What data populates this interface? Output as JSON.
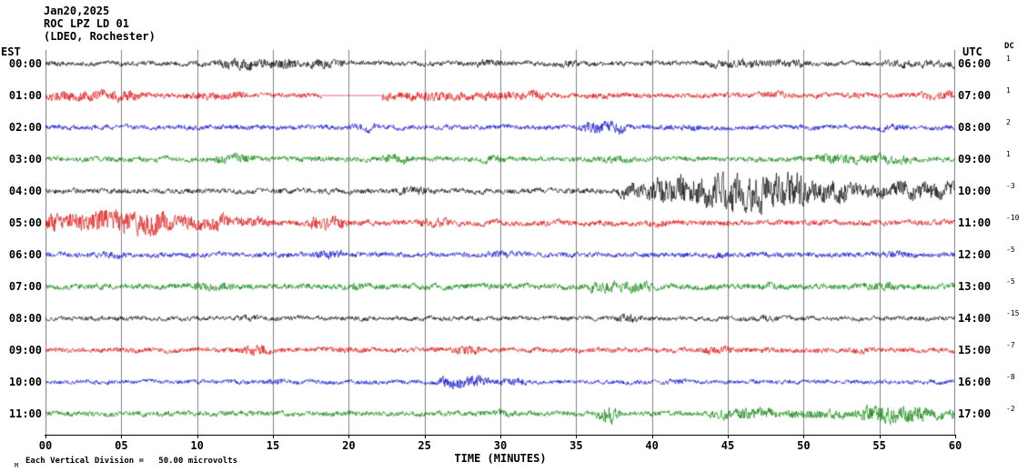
{
  "header": {
    "date": "Jan20,2025",
    "station": "ROC LPZ LD 01",
    "network": "(LDEO, Rochester)"
  },
  "axes": {
    "left_label": "EST",
    "right_label": "UTC",
    "dc_label": "DC",
    "x_label": "TIME (MINUTES)",
    "x_ticks": [
      "00",
      "05",
      "10",
      "15",
      "20",
      "25",
      "30",
      "35",
      "40",
      "45",
      "50",
      "55",
      "60"
    ]
  },
  "footer": {
    "scale_note": "Each Vertical Division =   50.00 microvolts",
    "corner_mark": "M"
  },
  "chart_data": {
    "type": "line",
    "title": "ROC LPZ LD 01 (LDEO, Rochester) helicorder, Jan20,2025",
    "xlabel": "TIME (MINUTES)",
    "x_range_minutes": [
      0,
      60
    ],
    "grid_interval_minutes": 5,
    "vertical_division_microvolts": 50.0,
    "grid": true,
    "colors": {
      "black": "#000000",
      "red": "#dd0000",
      "blue": "#0000cc",
      "green": "#008000",
      "grid": "#808080"
    },
    "rows": [
      {
        "est": "00:00",
        "utc": "06:00",
        "color": "black",
        "dc": "1",
        "base": 3.2,
        "events": [
          {
            "t0": 11.5,
            "t1": 16.5,
            "amp": 7
          },
          {
            "t0": 17.5,
            "t1": 19.5,
            "amp": 6
          },
          {
            "t0": 28.5,
            "t1": 30,
            "amp": 5
          },
          {
            "t0": 34,
            "t1": 35,
            "amp": 5
          },
          {
            "t0": 44,
            "t1": 50,
            "amp": 5.5
          },
          {
            "t0": 55.5,
            "t1": 60,
            "amp": 5
          }
        ],
        "gaps": []
      },
      {
        "est": "01:00",
        "utc": "07:00",
        "color": "red",
        "dc": "1",
        "base": 3.4,
        "events": [
          {
            "t0": 0,
            "t1": 6,
            "amp": 7
          },
          {
            "t0": 9.5,
            "t1": 13,
            "amp": 5.5
          },
          {
            "t0": 22,
            "t1": 33,
            "amp": 6
          },
          {
            "t0": 36,
            "t1": 37,
            "amp": 4.5
          },
          {
            "t0": 47.5,
            "t1": 49,
            "amp": 5
          },
          {
            "t0": 53,
            "t1": 54,
            "amp": 4.5
          },
          {
            "t0": 58,
            "t1": 60,
            "amp": 6
          }
        ],
        "gaps": [
          {
            "t0": 18.2,
            "t1": 22.2
          }
        ]
      },
      {
        "est": "02:00",
        "utc": "08:00",
        "color": "blue",
        "dc": "2",
        "base": 3.2,
        "events": [
          {
            "t0": 20.5,
            "t1": 22,
            "amp": 5
          },
          {
            "t0": 35.5,
            "t1": 38,
            "amp": 8
          },
          {
            "t0": 41.5,
            "t1": 43,
            "amp": 4.5
          },
          {
            "t0": 55,
            "t1": 56.5,
            "amp": 4.5
          }
        ],
        "gaps": []
      },
      {
        "est": "03:00",
        "utc": "09:00",
        "color": "green",
        "dc": "1",
        "base": 3.4,
        "events": [
          {
            "t0": 11.5,
            "t1": 13.5,
            "amp": 7
          },
          {
            "t0": 22.5,
            "t1": 24,
            "amp": 7
          },
          {
            "t0": 29,
            "t1": 30,
            "amp": 5
          },
          {
            "t0": 37,
            "t1": 38.5,
            "amp": 5
          },
          {
            "t0": 51,
            "t1": 57,
            "amp": 6.5
          }
        ],
        "gaps": []
      },
      {
        "est": "04:00",
        "utc": "10:00",
        "color": "black",
        "dc": "-3",
        "base": 3.4,
        "events": [
          {
            "t0": 23.5,
            "t1": 25,
            "amp": 6
          },
          {
            "t0": 38,
            "t1": 40,
            "amp": 10
          },
          {
            "t0": 40,
            "t1": 44,
            "amp": 20
          },
          {
            "t0": 44,
            "t1": 50,
            "amp": 24
          },
          {
            "t0": 50,
            "t1": 53,
            "amp": 15
          },
          {
            "t0": 53,
            "t1": 56,
            "amp": 9
          },
          {
            "t0": 56,
            "t1": 60,
            "amp": 11
          }
        ],
        "gaps": []
      },
      {
        "est": "05:00",
        "utc": "11:00",
        "color": "red",
        "dc": "-10",
        "base": 3.8,
        "events": [
          {
            "t0": 0,
            "t1": 3,
            "amp": 13
          },
          {
            "t0": 3,
            "t1": 8,
            "amp": 15
          },
          {
            "t0": 8,
            "t1": 12,
            "amp": 10
          },
          {
            "t0": 12,
            "t1": 14.5,
            "amp": 7
          },
          {
            "t0": 17.5,
            "t1": 19.5,
            "amp": 10
          },
          {
            "t0": 25,
            "t1": 26.5,
            "amp": 6
          },
          {
            "t0": 40,
            "t1": 41,
            "amp": 5
          }
        ],
        "gaps": []
      },
      {
        "est": "06:00",
        "utc": "12:00",
        "color": "blue",
        "dc": "-5",
        "base": 3.4,
        "events": [
          {
            "t0": 4,
            "t1": 5,
            "amp": 5
          },
          {
            "t0": 18,
            "t1": 19.5,
            "amp": 6
          },
          {
            "t0": 29.5,
            "t1": 31,
            "amp": 5
          },
          {
            "t0": 44,
            "t1": 45,
            "amp": 4.5
          },
          {
            "t0": 55,
            "t1": 57,
            "amp": 5
          }
        ],
        "gaps": []
      },
      {
        "est": "07:00",
        "utc": "13:00",
        "color": "green",
        "dc": "-5",
        "base": 3.8,
        "events": [
          {
            "t0": 10,
            "t1": 12,
            "amp": 6
          },
          {
            "t0": 20,
            "t1": 21,
            "amp": 5
          },
          {
            "t0": 36,
            "t1": 40,
            "amp": 7
          },
          {
            "t0": 47,
            "t1": 48,
            "amp": 5
          },
          {
            "t0": 54.5,
            "t1": 56,
            "amp": 5.5
          }
        ],
        "gaps": []
      },
      {
        "est": "08:00",
        "utc": "14:00",
        "color": "black",
        "dc": "-15",
        "base": 3.0,
        "events": [
          {
            "t0": 13,
            "t1": 14,
            "amp": 4.5
          },
          {
            "t0": 38,
            "t1": 39,
            "amp": 6
          },
          {
            "t0": 47,
            "t1": 48,
            "amp": 4.5
          }
        ],
        "gaps": []
      },
      {
        "est": "09:00",
        "utc": "15:00",
        "color": "red",
        "dc": "-7",
        "base": 3.4,
        "events": [
          {
            "t0": 13,
            "t1": 14.5,
            "amp": 7
          },
          {
            "t0": 19.5,
            "t1": 20.5,
            "amp": 5
          },
          {
            "t0": 27,
            "t1": 28.5,
            "amp": 6
          },
          {
            "t0": 43.5,
            "t1": 45,
            "amp": 5.5
          },
          {
            "t0": 53,
            "t1": 54,
            "amp": 4.5
          }
        ],
        "gaps": []
      },
      {
        "est": "10:00",
        "utc": "16:00",
        "color": "blue",
        "dc": "-8",
        "base": 2.8,
        "events": [
          {
            "t0": 14.5,
            "t1": 15.5,
            "amp": 4
          },
          {
            "t0": 26,
            "t1": 29,
            "amp": 8
          },
          {
            "t0": 30,
            "t1": 31.5,
            "amp": 5
          },
          {
            "t0": 41,
            "t1": 42,
            "amp": 4
          }
        ],
        "gaps": []
      },
      {
        "est": "11:00",
        "utc": "17:00",
        "color": "green",
        "dc": "-2",
        "base": 3.4,
        "events": [
          {
            "t0": 29.8,
            "t1": 30.4,
            "amp": 5
          },
          {
            "t0": 36.7,
            "t1": 37.5,
            "amp": 14
          },
          {
            "t0": 44,
            "t1": 48,
            "amp": 7
          },
          {
            "t0": 49,
            "t1": 54,
            "amp": 6
          },
          {
            "t0": 54,
            "t1": 58,
            "amp": 11
          },
          {
            "t0": 58,
            "t1": 60,
            "amp": 7
          }
        ],
        "gaps": []
      }
    ]
  }
}
